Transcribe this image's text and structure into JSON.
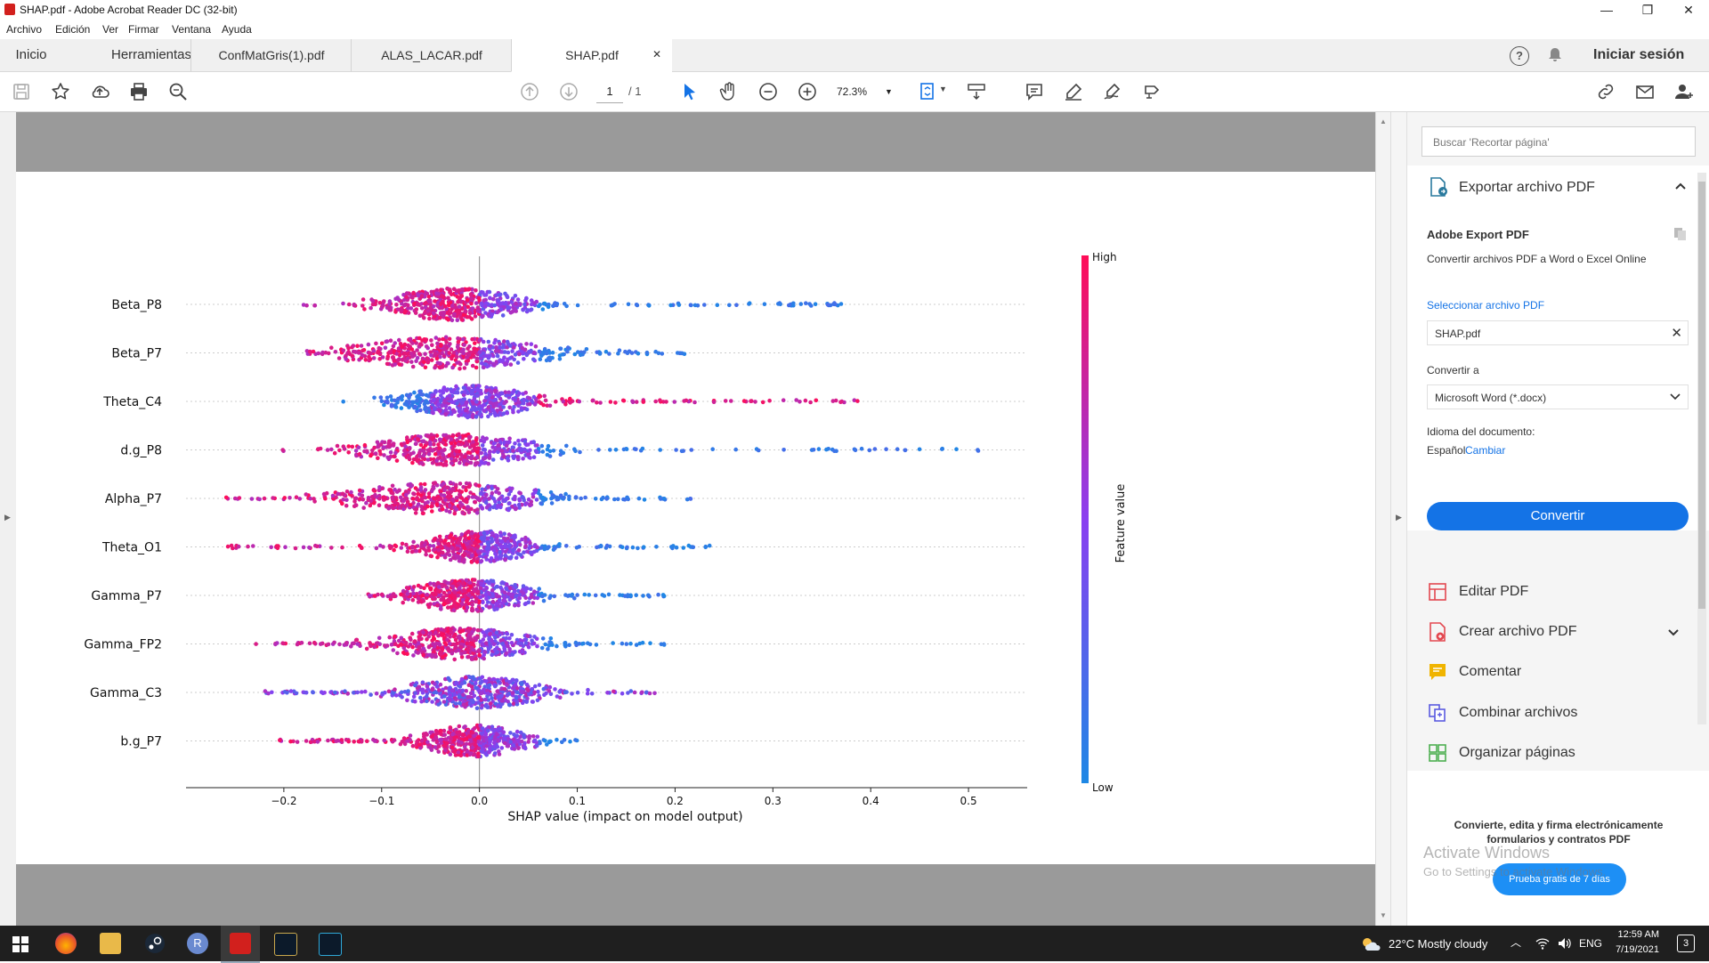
{
  "window": {
    "title": "SHAP.pdf - Adobe Acrobat Reader DC (32-bit)",
    "min_glyph": "—",
    "max_glyph": "❐",
    "close_glyph": "✕"
  },
  "menu": [
    "Archivo",
    "Edición",
    "Ver",
    "Firmar",
    "Ventana",
    "Ayuda"
  ],
  "tabs": {
    "home": "Inicio",
    "tools": "Herramientas",
    "docs": [
      "ConfMatGris(1).pdf",
      "ALAS_LACAR.pdf",
      "SHAP.pdf"
    ],
    "close_glyph": "✕",
    "help_glyph": "?",
    "signin": "Iniciar sesión"
  },
  "toolbar": {
    "page_current": "1",
    "page_total": "/ 1",
    "zoom": "72.3%"
  },
  "right_pane": {
    "search_placeholder": "Buscar 'Recortar página'",
    "export_header": "Exportar archivo PDF",
    "export_title": "Adobe Export PDF",
    "export_desc": "Convertir archivos PDF a Word o Excel Online",
    "select_label": "Seleccionar archivo PDF",
    "file_name": "SHAP.pdf",
    "convert_to_label": "Convertir a",
    "convert_to_value": "Microsoft Word (*.docx)",
    "lang_label": "Idioma del documento:",
    "lang_value": "Español",
    "lang_change": "Cambiar",
    "convert_button": "Convertir",
    "tools": [
      "Editar PDF",
      "Crear archivo PDF",
      "Comentar",
      "Combinar archivos",
      "Organizar páginas"
    ],
    "promo_line1": "Convierte, edita y firma electrónicamente",
    "promo_line2": "formularios y contratos PDF",
    "trial_button": "Prueba gratis de 7 días",
    "watermark_line1": "Activate Windows",
    "watermark_line2": "Go to Settings to activate Windows."
  },
  "taskbar": {
    "weather": "22°C  Mostly cloudy",
    "lang": "ENG",
    "time": "12:59 AM",
    "date": "7/19/2021",
    "notif_count": "3",
    "r_letter": "R"
  },
  "colors": {
    "accent_blue": "#1473e6",
    "high": "#ff0d57",
    "low": "#1e88e5"
  },
  "chart_data": {
    "type": "scatter",
    "subtype": "shap beeswarm summary",
    "xlabel": "SHAP value (impact on model output)",
    "xticks": [
      -0.2,
      -0.1,
      0.0,
      0.1,
      0.2,
      0.3,
      0.4,
      0.5
    ],
    "xtick_labels": [
      "−0.2",
      "−0.1",
      "0.0",
      "0.1",
      "0.2",
      "0.3",
      "0.4",
      "0.5"
    ],
    "xlim": [
      -0.3,
      0.56
    ],
    "colorbar_label": "Feature value",
    "colorbar_high": "High",
    "colorbar_low": "Low",
    "features": [
      {
        "name": "Beta_P8",
        "min": -0.18,
        "max": 0.38,
        "core": [
          -0.1,
          0.05
        ],
        "high_side": "left"
      },
      {
        "name": "Beta_P7",
        "min": -0.18,
        "max": 0.21,
        "core": [
          -0.14,
          0.08
        ],
        "high_side": "left"
      },
      {
        "name": "Theta_C4",
        "min": -0.14,
        "max": 0.39,
        "core": [
          -0.08,
          0.06
        ],
        "high_side": "right"
      },
      {
        "name": "d.g_P8",
        "min": -0.22,
        "max": 0.52,
        "core": [
          -0.12,
          0.07
        ],
        "high_side": "left"
      },
      {
        "name": "Alpha_P7",
        "min": -0.26,
        "max": 0.22,
        "core": [
          -0.14,
          0.07
        ],
        "high_side": "left"
      },
      {
        "name": "Theta_O1",
        "min": -0.26,
        "max": 0.24,
        "core": [
          -0.06,
          0.06
        ],
        "high_side": "left"
      },
      {
        "name": "Gamma_P7",
        "min": -0.12,
        "max": 0.19,
        "core": [
          -0.08,
          0.06
        ],
        "high_side": "left"
      },
      {
        "name": "Gamma_FP2",
        "min": -0.23,
        "max": 0.19,
        "core": [
          -0.1,
          0.06
        ],
        "high_side": "left"
      },
      {
        "name": "Gamma_C3",
        "min": -0.22,
        "max": 0.18,
        "core": [
          -0.08,
          0.07
        ],
        "high_side": "mixed"
      },
      {
        "name": "b.g_P7",
        "min": -0.21,
        "max": 0.1,
        "core": [
          -0.06,
          0.05
        ],
        "high_side": "left"
      }
    ]
  }
}
